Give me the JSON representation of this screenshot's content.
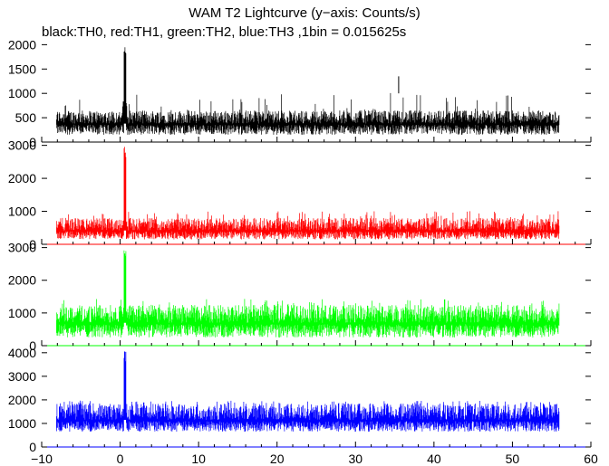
{
  "chart_data": {
    "type": "line",
    "title": "WAM T2 Lightcurve (y−axis: Counts/s)",
    "subtitle": "black:TH0, red:TH1, green:TH2, blue:TH3 ,1bin = 0.015625s",
    "xlim": [
      -10,
      60
    ],
    "x_ticks": [
      -10,
      0,
      10,
      20,
      30,
      40,
      50,
      60
    ],
    "x_tick_labels": [
      "−10",
      "0",
      "10",
      "20",
      "30",
      "40",
      "50",
      "60"
    ],
    "x_range_data": [
      -8.1,
      56
    ],
    "peak_time": 0.6,
    "grid": false,
    "legend": "none",
    "series": [
      {
        "color": "#000000",
        "ylim": [
          0,
          2100
        ],
        "y_ticks": [
          0,
          500,
          1000,
          1500,
          2000
        ],
        "y_tick_labels": [
          "0",
          "500",
          "1000",
          "1500",
          "2000"
        ],
        "baseline": 380,
        "band_low": 150,
        "band_high": 650,
        "peak": 2050,
        "pre_peak": 1050,
        "occasional_spike": 1250
      },
      {
        "color": "#ff0000",
        "ylim": [
          0,
          3100
        ],
        "y_ticks": [
          0,
          1000,
          2000,
          3000
        ],
        "y_tick_labels": [
          "0",
          "1000",
          "2000",
          "3000"
        ],
        "baseline": 420,
        "band_low": 150,
        "band_high": 800,
        "peak": 3000,
        "pre_peak": 950,
        "occasional_spike": 1150
      },
      {
        "color": "#00ff00",
        "ylim": [
          0,
          3100
        ],
        "y_ticks": [
          0,
          1000,
          2000,
          3000
        ],
        "y_tick_labels": [
          "0",
          "1000",
          "2000",
          "3000"
        ],
        "baseline": 700,
        "band_low": 250,
        "band_high": 1250,
        "peak": 3000,
        "pre_peak": 1500,
        "occasional_spike": 1550
      },
      {
        "color": "#0000ff",
        "ylim": [
          0,
          4300
        ],
        "y_ticks": [
          0,
          1000,
          2000,
          3000,
          4000
        ],
        "y_tick_labels": [
          "0",
          "1000",
          "2000",
          "3000",
          "4000"
        ],
        "baseline": 1150,
        "band_low": 650,
        "band_high": 1850,
        "peak": 4250,
        "pre_peak": 1900,
        "occasional_spike": 2050
      }
    ]
  }
}
